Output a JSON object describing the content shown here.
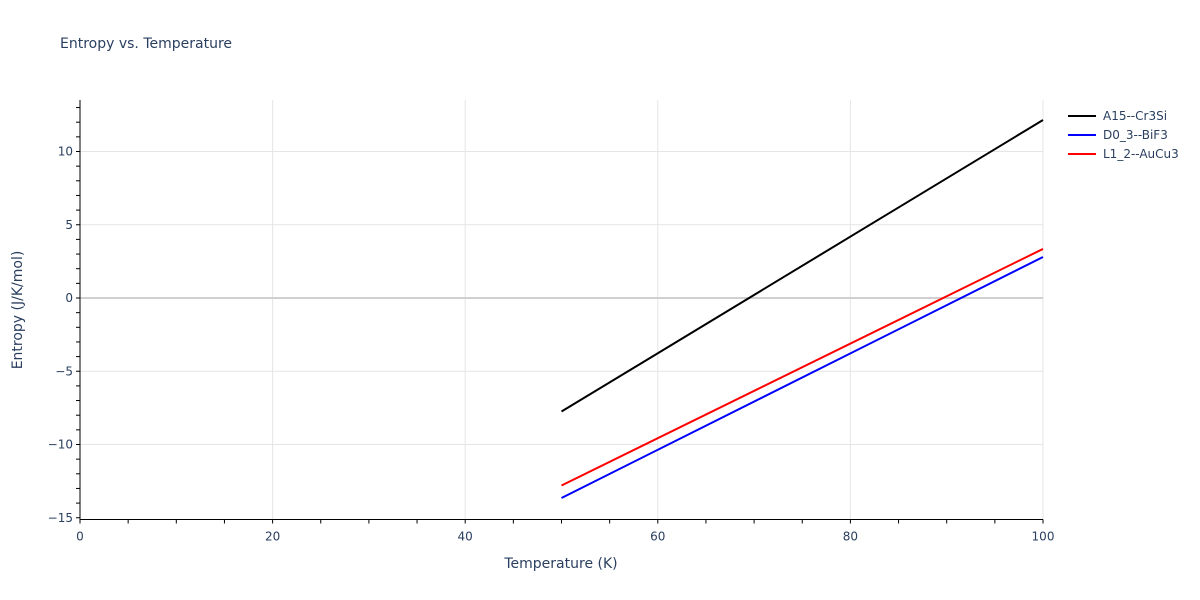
{
  "chart_data": {
    "type": "line",
    "title": "Entropy vs. Temperature",
    "xlabel": "Temperature (K)",
    "ylabel": "Entropy (J/K/mol)",
    "xlim": [
      0,
      100
    ],
    "ylim": [
      -15,
      13.5
    ],
    "x_ticks": [
      0,
      20,
      40,
      60,
      80,
      100
    ],
    "y_ticks": [
      -15,
      -10,
      -5,
      0,
      5,
      10
    ],
    "y_tick_labels": [
      "−15",
      "−10",
      "−5",
      "0",
      "5",
      "10"
    ],
    "grid": true,
    "legend_position": "right",
    "series": [
      {
        "name": "A15--Cr3Si",
        "color": "#000000",
        "x": [
          50,
          100
        ],
        "y": [
          -7.75,
          12.15
        ]
      },
      {
        "name": "D0_3--BiF3",
        "color": "#0000ff",
        "x": [
          50,
          100
        ],
        "y": [
          -13.65,
          2.8
        ]
      },
      {
        "name": "L1_2--AuCu3",
        "color": "#ff0000",
        "x": [
          50,
          100
        ],
        "y": [
          -12.8,
          3.35
        ]
      }
    ]
  }
}
